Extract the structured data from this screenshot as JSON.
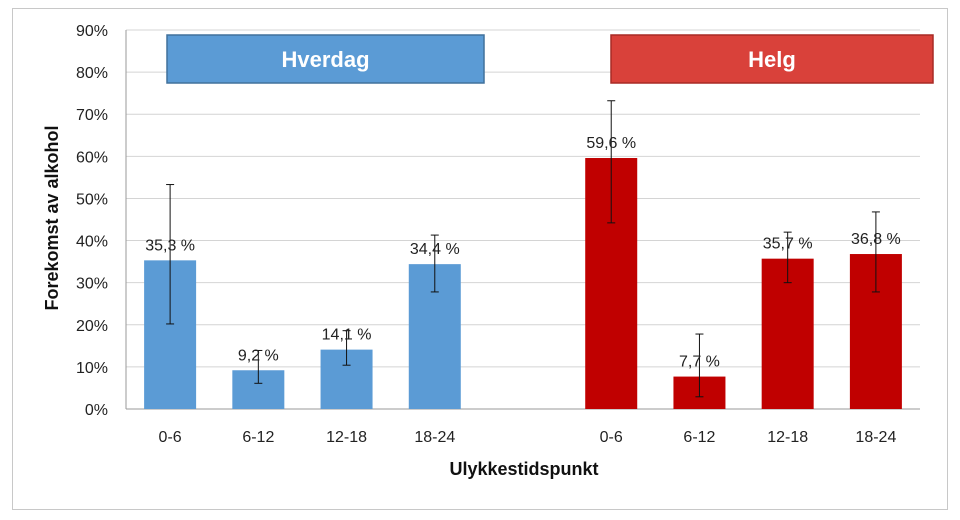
{
  "chart_data": {
    "type": "bar",
    "xlabel": "Ulykkestidspunkt",
    "ylabel": "Forekomst av alkohol",
    "ylim": [
      0,
      90
    ],
    "y_ticks": [
      "0%",
      "10%",
      "20%",
      "30%",
      "40%",
      "50%",
      "60%",
      "70%",
      "80%",
      "90%"
    ],
    "grid": true,
    "groups": [
      {
        "name": "Hverdag",
        "color": "#5b9bd5",
        "categories": [
          "0-6",
          "6-12",
          "12-18",
          "18-24"
        ],
        "values": [
          35.3,
          9.2,
          14.1,
          34.4
        ],
        "labels": [
          "35,3 %",
          "9,2 %",
          "14,1 %",
          "34,4 %"
        ],
        "error_low": [
          20.2,
          6.1,
          10.4,
          27.8
        ],
        "error_high": [
          53.3,
          13.9,
          18.6,
          41.3
        ]
      },
      {
        "name": "Helg",
        "color": "#c00000",
        "categories": [
          "0-6",
          "6-12",
          "12-18",
          "18-24"
        ],
        "values": [
          59.6,
          7.7,
          35.7,
          36.8
        ],
        "labels": [
          "59,6 %",
          "7,7 %",
          "35,7 %",
          "36,8 %"
        ],
        "error_low": [
          44.2,
          2.9,
          30.0,
          27.8
        ],
        "error_high": [
          73.2,
          17.8,
          42.0,
          46.8
        ]
      }
    ],
    "banners": [
      {
        "text": "Hverdag",
        "fill": "#5b9bd5",
        "stroke": "#41719c"
      },
      {
        "text": "Helg",
        "fill": "#d9413a",
        "stroke": "#a82a25"
      }
    ]
  }
}
